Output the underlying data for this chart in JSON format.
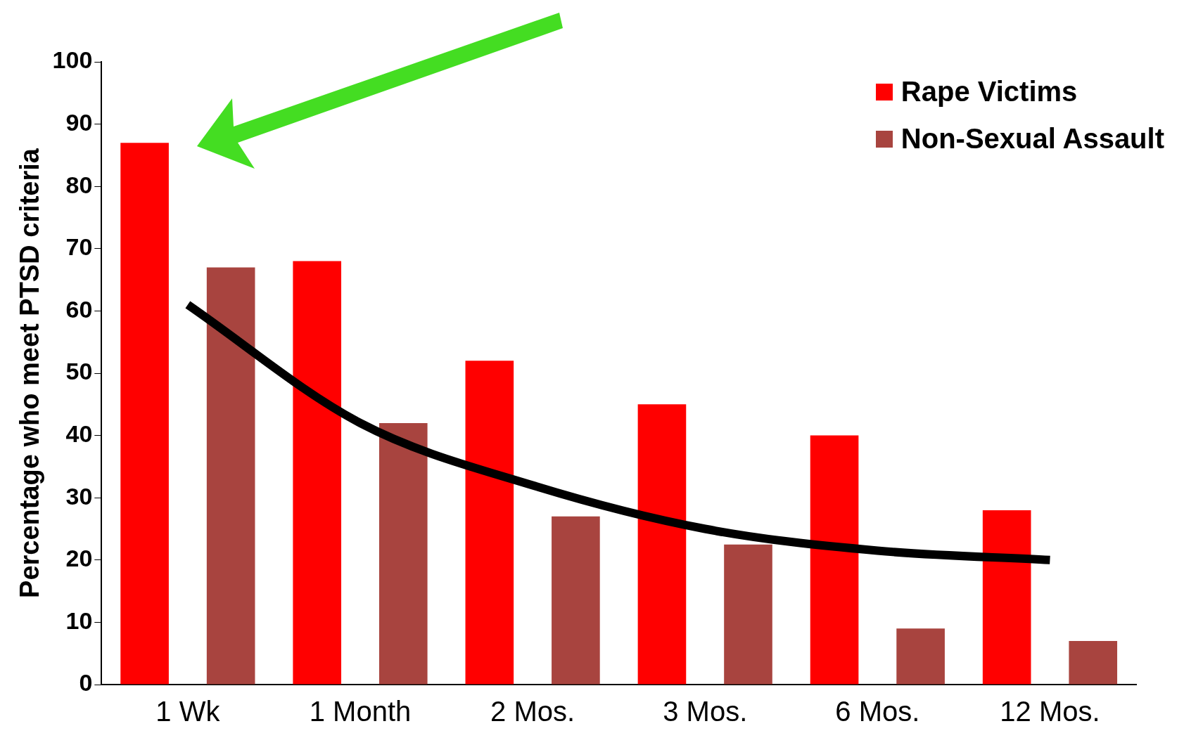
{
  "chart_data": {
    "type": "bar",
    "ylabel": "Percentage who meet PTSD criteria",
    "categories": [
      "1 Wk",
      "1 Month",
      "2 Mos.",
      "3 Mos.",
      "6 Mos.",
      "12 Mos."
    ],
    "series": [
      {
        "name": "Rape Victims",
        "color": "#ff0000",
        "values": [
          87,
          68,
          52,
          45,
          40,
          28
        ]
      },
      {
        "name": "Non-Sexual Assault",
        "color": "#a8443f",
        "values": [
          67,
          42,
          27,
          22.5,
          9,
          7
        ]
      },
      {
        "type": "line",
        "color": "#000000",
        "values": [
          61,
          42,
          32,
          25,
          21.5,
          20
        ]
      }
    ],
    "ylim": [
      0,
      100
    ],
    "yticks": [
      0,
      10,
      20,
      30,
      40,
      50,
      60,
      70,
      80,
      90,
      100
    ],
    "grid": false,
    "legend": "top right",
    "marker": "none",
    "line_style": "solid"
  }
}
